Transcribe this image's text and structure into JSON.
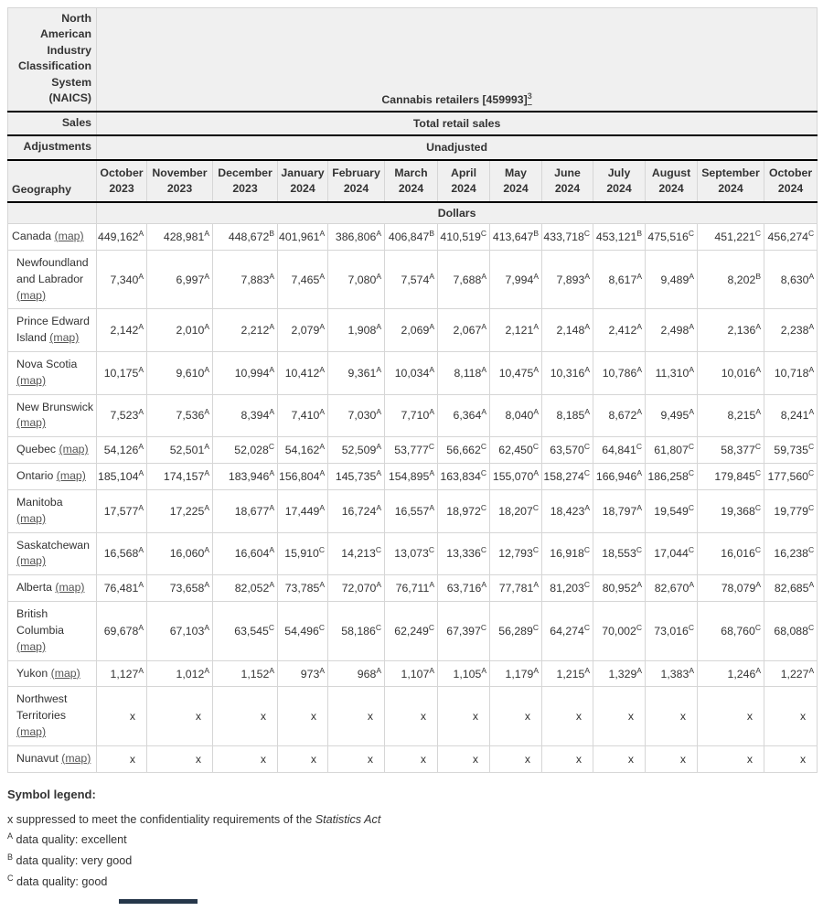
{
  "colors": {
    "header_bg": "#f0f0f0",
    "grid_line": "#d6d6d6",
    "link": "#555555",
    "bottom_bar": "#26374a"
  },
  "table": {
    "naics_label": "North American Industry Classification System (NAICS)",
    "naics_value": "Cannabis retailers [459993]",
    "naics_footnote": "3",
    "sales_label": "Sales",
    "sales_value": "Total retail sales",
    "adjustments_label": "Adjustments",
    "adjustments_value": "Unadjusted",
    "geography_label": "Geography",
    "unit_label": "Dollars",
    "map_label": "(map)",
    "columns": [
      {
        "month": "October",
        "year": "2023"
      },
      {
        "month": "November",
        "year": "2023"
      },
      {
        "month": "December",
        "year": "2023"
      },
      {
        "month": "January",
        "year": "2024"
      },
      {
        "month": "February",
        "year": "2024"
      },
      {
        "month": "March",
        "year": "2024"
      },
      {
        "month": "April",
        "year": "2024"
      },
      {
        "month": "May",
        "year": "2024"
      },
      {
        "month": "June",
        "year": "2024"
      },
      {
        "month": "July",
        "year": "2024"
      },
      {
        "month": "August",
        "year": "2024"
      },
      {
        "month": "September",
        "year": "2024"
      },
      {
        "month": "October",
        "year": "2024"
      }
    ],
    "rows": [
      {
        "geo": "Canada",
        "indent": false,
        "values": [
          {
            "v": "449,162",
            "q": "A"
          },
          {
            "v": "428,981",
            "q": "A"
          },
          {
            "v": "448,672",
            "q": "B"
          },
          {
            "v": "401,961",
            "q": "A"
          },
          {
            "v": "386,806",
            "q": "A"
          },
          {
            "v": "406,847",
            "q": "B"
          },
          {
            "v": "410,519",
            "q": "C"
          },
          {
            "v": "413,647",
            "q": "B"
          },
          {
            "v": "433,718",
            "q": "C"
          },
          {
            "v": "453,121",
            "q": "B"
          },
          {
            "v": "475,516",
            "q": "C"
          },
          {
            "v": "451,221",
            "q": "C"
          },
          {
            "v": "456,274",
            "q": "C"
          }
        ]
      },
      {
        "geo": "Newfoundland and Labrador",
        "indent": true,
        "values": [
          {
            "v": "7,340",
            "q": "A"
          },
          {
            "v": "6,997",
            "q": "A"
          },
          {
            "v": "7,883",
            "q": "A"
          },
          {
            "v": "7,465",
            "q": "A"
          },
          {
            "v": "7,080",
            "q": "A"
          },
          {
            "v": "7,574",
            "q": "A"
          },
          {
            "v": "7,688",
            "q": "A"
          },
          {
            "v": "7,994",
            "q": "A"
          },
          {
            "v": "7,893",
            "q": "A"
          },
          {
            "v": "8,617",
            "q": "A"
          },
          {
            "v": "9,489",
            "q": "A"
          },
          {
            "v": "8,202",
            "q": "B"
          },
          {
            "v": "8,630",
            "q": "A"
          }
        ]
      },
      {
        "geo": "Prince Edward Island",
        "indent": true,
        "values": [
          {
            "v": "2,142",
            "q": "A"
          },
          {
            "v": "2,010",
            "q": "A"
          },
          {
            "v": "2,212",
            "q": "A"
          },
          {
            "v": "2,079",
            "q": "A"
          },
          {
            "v": "1,908",
            "q": "A"
          },
          {
            "v": "2,069",
            "q": "A"
          },
          {
            "v": "2,067",
            "q": "A"
          },
          {
            "v": "2,121",
            "q": "A"
          },
          {
            "v": "2,148",
            "q": "A"
          },
          {
            "v": "2,412",
            "q": "A"
          },
          {
            "v": "2,498",
            "q": "A"
          },
          {
            "v": "2,136",
            "q": "A"
          },
          {
            "v": "2,238",
            "q": "A"
          }
        ]
      },
      {
        "geo": "Nova Scotia",
        "indent": true,
        "values": [
          {
            "v": "10,175",
            "q": "A"
          },
          {
            "v": "9,610",
            "q": "A"
          },
          {
            "v": "10,994",
            "q": "A"
          },
          {
            "v": "10,412",
            "q": "A"
          },
          {
            "v": "9,361",
            "q": "A"
          },
          {
            "v": "10,034",
            "q": "A"
          },
          {
            "v": "8,118",
            "q": "A"
          },
          {
            "v": "10,475",
            "q": "A"
          },
          {
            "v": "10,316",
            "q": "A"
          },
          {
            "v": "10,786",
            "q": "A"
          },
          {
            "v": "11,310",
            "q": "A"
          },
          {
            "v": "10,016",
            "q": "A"
          },
          {
            "v": "10,718",
            "q": "A"
          }
        ]
      },
      {
        "geo": "New Brunswick",
        "indent": true,
        "values": [
          {
            "v": "7,523",
            "q": "A"
          },
          {
            "v": "7,536",
            "q": "A"
          },
          {
            "v": "8,394",
            "q": "A"
          },
          {
            "v": "7,410",
            "q": "A"
          },
          {
            "v": "7,030",
            "q": "A"
          },
          {
            "v": "7,710",
            "q": "A"
          },
          {
            "v": "6,364",
            "q": "A"
          },
          {
            "v": "8,040",
            "q": "A"
          },
          {
            "v": "8,185",
            "q": "A"
          },
          {
            "v": "8,672",
            "q": "A"
          },
          {
            "v": "9,495",
            "q": "A"
          },
          {
            "v": "8,215",
            "q": "A"
          },
          {
            "v": "8,241",
            "q": "A"
          }
        ]
      },
      {
        "geo": "Quebec",
        "indent": true,
        "values": [
          {
            "v": "54,126",
            "q": "A"
          },
          {
            "v": "52,501",
            "q": "A"
          },
          {
            "v": "52,028",
            "q": "C"
          },
          {
            "v": "54,162",
            "q": "A"
          },
          {
            "v": "52,509",
            "q": "A"
          },
          {
            "v": "53,777",
            "q": "C"
          },
          {
            "v": "56,662",
            "q": "C"
          },
          {
            "v": "62,450",
            "q": "C"
          },
          {
            "v": "63,570",
            "q": "C"
          },
          {
            "v": "64,841",
            "q": "C"
          },
          {
            "v": "61,807",
            "q": "C"
          },
          {
            "v": "58,377",
            "q": "C"
          },
          {
            "v": "59,735",
            "q": "C"
          }
        ]
      },
      {
        "geo": "Ontario",
        "indent": true,
        "values": [
          {
            "v": "185,104",
            "q": "A"
          },
          {
            "v": "174,157",
            "q": "A"
          },
          {
            "v": "183,946",
            "q": "A"
          },
          {
            "v": "156,804",
            "q": "A"
          },
          {
            "v": "145,735",
            "q": "A"
          },
          {
            "v": "154,895",
            "q": "A"
          },
          {
            "v": "163,834",
            "q": "C"
          },
          {
            "v": "155,070",
            "q": "A"
          },
          {
            "v": "158,274",
            "q": "C"
          },
          {
            "v": "166,946",
            "q": "A"
          },
          {
            "v": "186,258",
            "q": "C"
          },
          {
            "v": "179,845",
            "q": "C"
          },
          {
            "v": "177,560",
            "q": "C"
          }
        ]
      },
      {
        "geo": "Manitoba",
        "indent": true,
        "values": [
          {
            "v": "17,577",
            "q": "A"
          },
          {
            "v": "17,225",
            "q": "A"
          },
          {
            "v": "18,677",
            "q": "A"
          },
          {
            "v": "17,449",
            "q": "A"
          },
          {
            "v": "16,724",
            "q": "A"
          },
          {
            "v": "16,557",
            "q": "A"
          },
          {
            "v": "18,972",
            "q": "C"
          },
          {
            "v": "18,207",
            "q": "C"
          },
          {
            "v": "18,423",
            "q": "A"
          },
          {
            "v": "18,797",
            "q": "A"
          },
          {
            "v": "19,549",
            "q": "C"
          },
          {
            "v": "19,368",
            "q": "C"
          },
          {
            "v": "19,779",
            "q": "C"
          }
        ]
      },
      {
        "geo": "Saskatchewan",
        "indent": true,
        "values": [
          {
            "v": "16,568",
            "q": "A"
          },
          {
            "v": "16,060",
            "q": "A"
          },
          {
            "v": "16,604",
            "q": "A"
          },
          {
            "v": "15,910",
            "q": "C"
          },
          {
            "v": "14,213",
            "q": "C"
          },
          {
            "v": "13,073",
            "q": "C"
          },
          {
            "v": "13,336",
            "q": "C"
          },
          {
            "v": "12,793",
            "q": "C"
          },
          {
            "v": "16,918",
            "q": "C"
          },
          {
            "v": "18,553",
            "q": "C"
          },
          {
            "v": "17,044",
            "q": "C"
          },
          {
            "v": "16,016",
            "q": "C"
          },
          {
            "v": "16,238",
            "q": "C"
          }
        ]
      },
      {
        "geo": "Alberta",
        "indent": true,
        "values": [
          {
            "v": "76,481",
            "q": "A"
          },
          {
            "v": "73,658",
            "q": "A"
          },
          {
            "v": "82,052",
            "q": "A"
          },
          {
            "v": "73,785",
            "q": "A"
          },
          {
            "v": "72,070",
            "q": "A"
          },
          {
            "v": "76,711",
            "q": "A"
          },
          {
            "v": "63,716",
            "q": "A"
          },
          {
            "v": "77,781",
            "q": "A"
          },
          {
            "v": "81,203",
            "q": "C"
          },
          {
            "v": "80,952",
            "q": "A"
          },
          {
            "v": "82,670",
            "q": "A"
          },
          {
            "v": "78,079",
            "q": "A"
          },
          {
            "v": "82,685",
            "q": "A"
          }
        ]
      },
      {
        "geo": "British Columbia",
        "indent": true,
        "values": [
          {
            "v": "69,678",
            "q": "A"
          },
          {
            "v": "67,103",
            "q": "A"
          },
          {
            "v": "63,545",
            "q": "C"
          },
          {
            "v": "54,496",
            "q": "C"
          },
          {
            "v": "58,186",
            "q": "C"
          },
          {
            "v": "62,249",
            "q": "C"
          },
          {
            "v": "67,397",
            "q": "C"
          },
          {
            "v": "56,289",
            "q": "C"
          },
          {
            "v": "64,274",
            "q": "C"
          },
          {
            "v": "70,002",
            "q": "C"
          },
          {
            "v": "73,016",
            "q": "C"
          },
          {
            "v": "68,760",
            "q": "C"
          },
          {
            "v": "68,088",
            "q": "C"
          }
        ]
      },
      {
        "geo": "Yukon",
        "indent": true,
        "values": [
          {
            "v": "1,127",
            "q": "A"
          },
          {
            "v": "1,012",
            "q": "A"
          },
          {
            "v": "1,152",
            "q": "A"
          },
          {
            "v": "973",
            "q": "A"
          },
          {
            "v": "968",
            "q": "A"
          },
          {
            "v": "1,107",
            "q": "A"
          },
          {
            "v": "1,105",
            "q": "A"
          },
          {
            "v": "1,179",
            "q": "A"
          },
          {
            "v": "1,215",
            "q": "A"
          },
          {
            "v": "1,329",
            "q": "A"
          },
          {
            "v": "1,383",
            "q": "A"
          },
          {
            "v": "1,246",
            "q": "A"
          },
          {
            "v": "1,227",
            "q": "A"
          }
        ]
      },
      {
        "geo": "Northwest Territories",
        "indent": true,
        "values": [
          {
            "v": "x",
            "q": ""
          },
          {
            "v": "x",
            "q": ""
          },
          {
            "v": "x",
            "q": ""
          },
          {
            "v": "x",
            "q": ""
          },
          {
            "v": "x",
            "q": ""
          },
          {
            "v": "x",
            "q": ""
          },
          {
            "v": "x",
            "q": ""
          },
          {
            "v": "x",
            "q": ""
          },
          {
            "v": "x",
            "q": ""
          },
          {
            "v": "x",
            "q": ""
          },
          {
            "v": "x",
            "q": ""
          },
          {
            "v": "x",
            "q": ""
          },
          {
            "v": "x",
            "q": ""
          }
        ]
      },
      {
        "geo": "Nunavut",
        "indent": true,
        "values": [
          {
            "v": "x",
            "q": ""
          },
          {
            "v": "x",
            "q": ""
          },
          {
            "v": "x",
            "q": ""
          },
          {
            "v": "x",
            "q": ""
          },
          {
            "v": "x",
            "q": ""
          },
          {
            "v": "x",
            "q": ""
          },
          {
            "v": "x",
            "q": ""
          },
          {
            "v": "x",
            "q": ""
          },
          {
            "v": "x",
            "q": ""
          },
          {
            "v": "x",
            "q": ""
          },
          {
            "v": "x",
            "q": ""
          },
          {
            "v": "x",
            "q": ""
          },
          {
            "v": "x",
            "q": ""
          }
        ]
      }
    ]
  },
  "legend": {
    "title": "Symbol legend:",
    "items": [
      {
        "segments": [
          {
            "t": "x",
            "s": "normal"
          },
          {
            "t": " suppressed to meet the confidentiality requirements of the ",
            "s": "normal"
          },
          {
            "t": "Statistics Act",
            "s": "italic"
          }
        ]
      },
      {
        "segments": [
          {
            "t": "A",
            "s": "sup"
          },
          {
            "t": " data quality: excellent",
            "s": "normal"
          }
        ]
      },
      {
        "segments": [
          {
            "t": "B",
            "s": "sup"
          },
          {
            "t": " data quality: very good",
            "s": "normal"
          }
        ]
      },
      {
        "segments": [
          {
            "t": "C",
            "s": "sup"
          },
          {
            "t": " data quality: good",
            "s": "normal"
          }
        ]
      }
    ]
  }
}
